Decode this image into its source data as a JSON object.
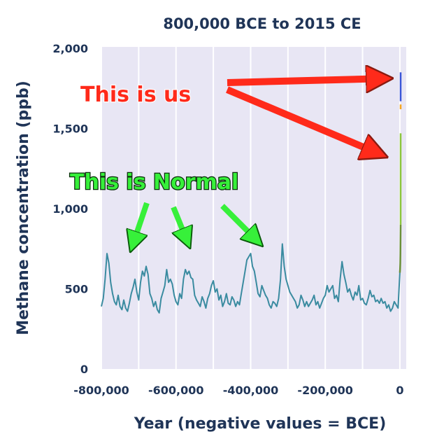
{
  "chart_data": {
    "type": "line",
    "title": "800,000 BCE to 2015 CE",
    "xlabel": "Year (negative values = BCE)",
    "ylabel": "Methane concentration (ppb)",
    "xlim": [
      -800000,
      2015
    ],
    "ylim": [
      0,
      2000
    ],
    "x_ticks": [
      -800000,
      -600000,
      -400000,
      -200000,
      0
    ],
    "x_tick_labels": [
      "-800,000",
      "-600,000",
      "-400,000",
      "-200,000",
      "0"
    ],
    "y_ticks": [
      0,
      500,
      1000,
      1500,
      2000
    ],
    "y_tick_labels": [
      "0",
      "500",
      "1,000",
      "1,500",
      "2,000"
    ],
    "grid": "vertical",
    "background": "#e8e6f4",
    "series": [
      {
        "color": "#3a8ba0",
        "x": [
          -800000,
          -795000,
          -790000,
          -785000,
          -780000,
          -775000,
          -770000,
          -765000,
          -760000,
          -755000,
          -750000,
          -745000,
          -740000,
          -735000,
          -730000,
          -725000,
          -720000,
          -715000,
          -710000,
          -705000,
          -700000,
          -695000,
          -690000,
          -685000,
          -680000,
          -675000,
          -670000,
          -665000,
          -660000,
          -655000,
          -650000,
          -645000,
          -640000,
          -635000,
          -630000,
          -625000,
          -620000,
          -615000,
          -610000,
          -605000,
          -600000,
          -595000,
          -590000,
          -585000,
          -580000,
          -575000,
          -570000,
          -565000,
          -560000,
          -555000,
          -550000,
          -545000,
          -540000,
          -535000,
          -530000,
          -525000,
          -520000,
          -515000,
          -510000,
          -505000,
          -500000,
          -495000,
          -490000,
          -485000,
          -480000,
          -475000,
          -470000,
          -465000,
          -460000,
          -455000,
          -450000,
          -445000,
          -440000,
          -435000,
          -430000,
          -425000,
          -420000,
          -415000,
          -410000,
          -405000,
          -400000,
          -395000,
          -390000,
          -385000,
          -380000,
          -375000,
          -370000,
          -365000,
          -360000,
          -355000,
          -350000,
          -345000,
          -340000,
          -335000,
          -330000,
          -325000,
          -320000,
          -315000,
          -310000,
          -305000,
          -300000,
          -295000,
          -290000,
          -285000,
          -280000,
          -275000,
          -270000,
          -265000,
          -260000,
          -255000,
          -250000,
          -245000,
          -240000,
          -235000,
          -230000,
          -225000,
          -220000,
          -215000,
          -210000,
          -205000,
          -200000,
          -195000,
          -190000,
          -185000,
          -180000,
          -175000,
          -170000,
          -165000,
          -160000,
          -155000,
          -150000,
          -145000,
          -140000,
          -135000,
          -130000,
          -125000,
          -120000,
          -115000,
          -110000,
          -105000,
          -100000,
          -95000,
          -90000,
          -85000,
          -80000,
          -75000,
          -70000,
          -65000,
          -60000,
          -55000,
          -50000,
          -45000,
          -40000,
          -35000,
          -30000,
          -25000,
          -20000,
          -15000,
          -10000,
          -5000,
          0
        ],
        "y": [
          390,
          440,
          560,
          720,
          660,
          540,
          470,
          420,
          400,
          460,
          390,
          370,
          430,
          380,
          360,
          410,
          470,
          510,
          560,
          480,
          430,
          540,
          610,
          580,
          640,
          590,
          470,
          440,
          390,
          420,
          370,
          350,
          440,
          480,
          520,
          620,
          540,
          560,
          530,
          460,
          420,
          400,
          470,
          440,
          560,
          620,
          590,
          610,
          570,
          560,
          460,
          430,
          410,
          390,
          450,
          420,
          380,
          440,
          470,
          520,
          550,
          480,
          500,
          430,
          460,
          390,
          420,
          470,
          410,
          400,
          450,
          430,
          390,
          420,
          400,
          470,
          540,
          610,
          680,
          700,
          720,
          640,
          610,
          540,
          470,
          450,
          520,
          490,
          460,
          440,
          400,
          380,
          420,
          410,
          390,
          440,
          560,
          780,
          640,
          560,
          520,
          480,
          460,
          440,
          420,
          380,
          400,
          460,
          430,
          390,
          420,
          390,
          410,
          430,
          460,
          400,
          420,
          380,
          410,
          440,
          460,
          520,
          480,
          500,
          520,
          440,
          460,
          420,
          560,
          670,
          590,
          540,
          480,
          500,
          460,
          430,
          480,
          460,
          520,
          430,
          440,
          410,
          400,
          440,
          490,
          450,
          460,
          420,
          430,
          410,
          440,
          410,
          420,
          380,
          400,
          360,
          380,
          420,
          400,
          380,
          600
        ]
      },
      {
        "color": "#6a8f3a",
        "x": [
          0,
          500,
          1000,
          1500,
          2000
        ],
        "y": [
          600,
          620,
          660,
          720,
          900
        ]
      },
      {
        "color": "#8cc63f",
        "x": [
          2000,
          2015
        ],
        "y": [
          900,
          1470
        ]
      },
      {
        "color": "#f5a623",
        "x": [
          2000,
          2015
        ],
        "y": [
          1620,
          1650
        ]
      },
      {
        "color": "#3a55d8",
        "x": [
          2000,
          2015
        ],
        "y": [
          1670,
          1850
        ]
      }
    ],
    "annotations": [
      {
        "text": "This is us",
        "color": "#ff2a1a"
      },
      {
        "text": "This is Normal",
        "color": "#37f03a"
      }
    ]
  }
}
